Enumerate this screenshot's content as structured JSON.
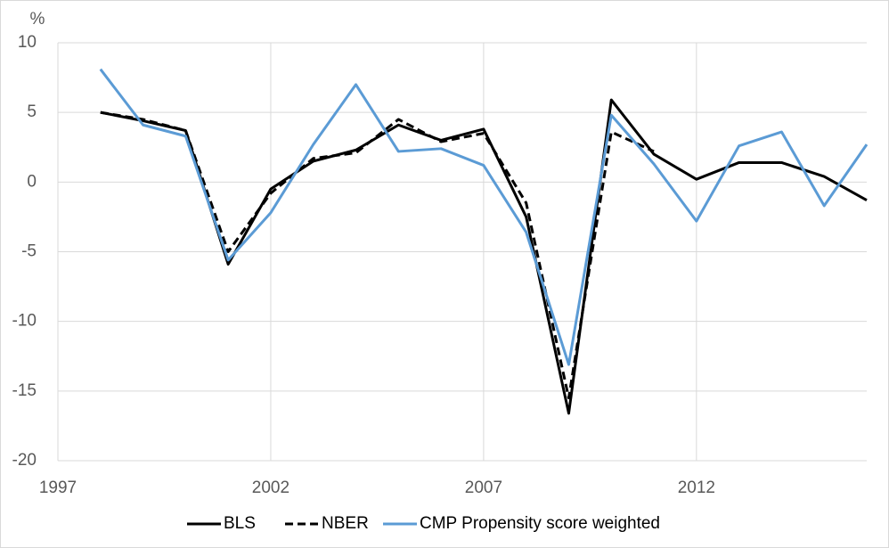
{
  "chart_data": {
    "type": "line",
    "y_label": "%",
    "x": [
      1998,
      1999,
      2000,
      2001,
      2002,
      2003,
      2004,
      2005,
      2006,
      2007,
      2008,
      2009,
      2010,
      2011,
      2012,
      2013,
      2014,
      2015,
      2016
    ],
    "series": [
      {
        "name": "BLS",
        "color": "#000000",
        "dash": "solid",
        "values": [
          5.0,
          4.4,
          3.7,
          -5.9,
          -0.5,
          1.5,
          2.3,
          4.1,
          3.0,
          3.8,
          -2.5,
          -16.6,
          5.9,
          2.0,
          0.2,
          1.4,
          1.4,
          0.4,
          -1.3
        ]
      },
      {
        "name": "NBER",
        "color": "#000000",
        "dash": "dashed",
        "values": [
          5.0,
          4.5,
          3.7,
          -5.0,
          -0.8,
          1.7,
          2.1,
          4.5,
          2.9,
          3.5,
          -1.5,
          -15.5,
          3.6,
          2.2,
          null,
          null,
          null,
          null,
          null
        ]
      },
      {
        "name": "CMP Propensity score weighted",
        "color": "#5b9bd5",
        "dash": "solid",
        "values": [
          8.1,
          4.1,
          3.3,
          -5.6,
          -2.2,
          2.7,
          7.0,
          2.2,
          2.4,
          1.2,
          -3.6,
          -13.1,
          4.8,
          1.3,
          -2.8,
          2.6,
          3.6,
          -1.7,
          2.7
        ]
      }
    ],
    "xlim": [
      1997,
      2016
    ],
    "xticks": [
      1997,
      2002,
      2007,
      2012
    ],
    "ylim": [
      -20,
      10
    ],
    "yticks": [
      -20,
      -15,
      -10,
      -5,
      0,
      5,
      10
    ],
    "grid": true,
    "legend": "bottom"
  }
}
